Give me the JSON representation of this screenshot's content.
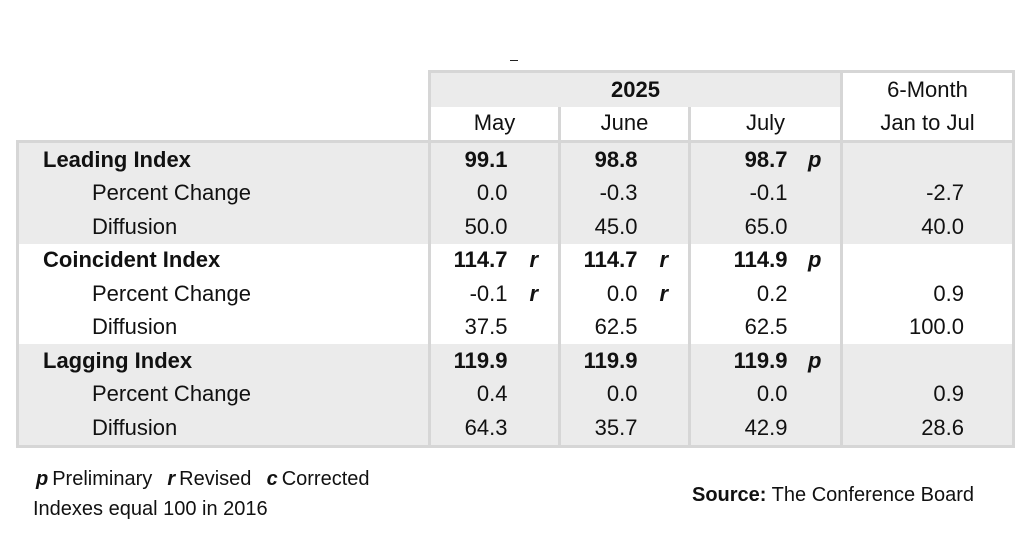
{
  "header": {
    "year": "2025",
    "months": [
      "May",
      "June",
      "July"
    ],
    "six_month_line1": "6-Month",
    "six_month_line2": "Jan to Jul"
  },
  "sections": [
    {
      "title": "Leading Index",
      "index": {
        "may": "99.1",
        "may_flag": "",
        "june": "98.8",
        "june_flag": "",
        "july": "98.7",
        "july_flag": "p",
        "six": ""
      },
      "pct_label": "Percent Change",
      "pct": {
        "may": "0.0",
        "may_flag": "",
        "june": "-0.3",
        "june_flag": "",
        "july": "-0.1",
        "july_flag": "",
        "six": "-2.7"
      },
      "diff_label": "Diffusion",
      "diff": {
        "may": "50.0",
        "june": "45.0",
        "july": "65.0",
        "six": "40.0"
      }
    },
    {
      "title": "Coincident Index",
      "index": {
        "may": "114.7",
        "may_flag": "r",
        "june": "114.7",
        "june_flag": "r",
        "july": "114.9",
        "july_flag": "p",
        "six": ""
      },
      "pct_label": "Percent Change",
      "pct": {
        "may": "-0.1",
        "may_flag": "r",
        "june": "0.0",
        "june_flag": "r",
        "july": "0.2",
        "july_flag": "",
        "six": "0.9"
      },
      "diff_label": "Diffusion",
      "diff": {
        "may": "37.5",
        "june": "62.5",
        "july": "62.5",
        "six": "100.0"
      }
    },
    {
      "title": "Lagging Index",
      "index": {
        "may": "119.9",
        "may_flag": "",
        "june": "119.9",
        "june_flag": "",
        "july": "119.9",
        "july_flag": "p",
        "six": ""
      },
      "pct_label": "Percent Change",
      "pct": {
        "may": "0.4",
        "may_flag": "",
        "june": "0.0",
        "june_flag": "",
        "july": "0.0",
        "july_flag": "",
        "six": "0.9"
      },
      "diff_label": "Diffusion",
      "diff": {
        "may": "64.3",
        "june": "35.7",
        "july": "42.9",
        "six": "28.6"
      }
    }
  ],
  "legend": {
    "p_key": "p",
    "p_text": "Preliminary",
    "r_key": "r",
    "r_text": "Revised",
    "c_key": "c",
    "c_text": "Corrected"
  },
  "note": "Indexes equal 100 in 2016",
  "source": {
    "label": "Source:",
    "text": "The Conference Board"
  }
}
